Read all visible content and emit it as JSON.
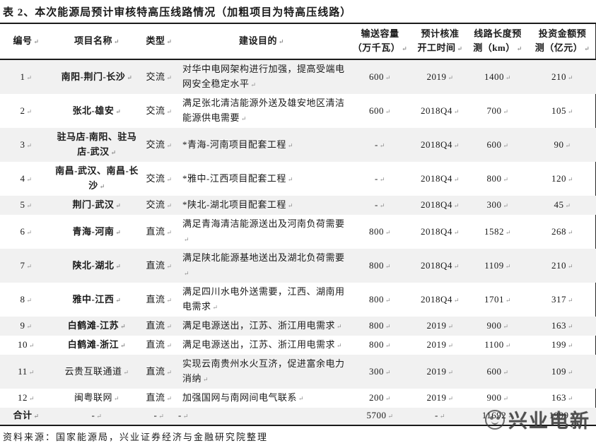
{
  "page": {
    "title": "表 2、本次能源局预计审核特高压线路情况（加粗项目为特高压线路）",
    "source": "资料来源：国家能源局，兴业证券经济与金融研究院整理",
    "watermark": "兴业电新"
  },
  "colors": {
    "stripe": "#f1f1f1",
    "border": "#1a1a1a",
    "watermark_grey": "#3c3c3c"
  },
  "table": {
    "columns": [
      {
        "key": "id",
        "label": "编号"
      },
      {
        "key": "name",
        "label": "项目名称"
      },
      {
        "key": "type",
        "label": "类型"
      },
      {
        "key": "purpose",
        "label": "建设目的"
      },
      {
        "key": "capacity",
        "label": "输送容量\n（万千瓦）"
      },
      {
        "key": "start",
        "label": "预计核准\n开工时间"
      },
      {
        "key": "length",
        "label": "线路长度预\n测（km）"
      },
      {
        "key": "investment",
        "label": "投资金额预\n测（亿元）"
      }
    ],
    "rows": [
      {
        "id": "1",
        "name": "南阳-荆门-长沙",
        "bold": true,
        "type": "交流",
        "purpose": "对华中电网架构进行加强，提高受端电网安全稳定水平",
        "capacity": "600",
        "start": "2019",
        "length": "1400",
        "investment": "210"
      },
      {
        "id": "2",
        "name": "张北-雄安",
        "bold": true,
        "type": "交流",
        "purpose": "满足张北清洁能源外送及雄安地区清洁能源供电需要",
        "capacity": "600",
        "start": "2018Q4",
        "length": "700",
        "investment": "105"
      },
      {
        "id": "3",
        "name": "驻马店-南阳、驻马店-武汉",
        "bold": true,
        "type": "交流",
        "purpose": "*青海-河南项目配套工程",
        "capacity": "-",
        "start": "2018Q4",
        "length": "600",
        "investment": "90"
      },
      {
        "id": "4",
        "name": "南昌-武汉、南昌-长沙",
        "bold": true,
        "type": "交流",
        "purpose": "*雅中-江西项目配套工程",
        "capacity": "-",
        "start": "2018Q4",
        "length": "800",
        "investment": "120"
      },
      {
        "id": "5",
        "name": "荆门-武汉",
        "bold": true,
        "type": "交流",
        "purpose": "*陕北-湖北项目配套工程",
        "capacity": "-",
        "start": "2018Q4",
        "length": "300",
        "investment": "45"
      },
      {
        "id": "6",
        "name": "青海-河南",
        "bold": true,
        "type": "直流",
        "purpose": "满足青海清洁能源送出及河南负荷需要",
        "capacity": "800",
        "start": "2018Q4",
        "length": "1582",
        "investment": "268"
      },
      {
        "id": "7",
        "name": "陕北-湖北",
        "bold": true,
        "type": "直流",
        "purpose": "满足陕北能源基地送出及湖北负荷需要",
        "capacity": "800",
        "start": "2018Q4",
        "length": "1109",
        "investment": "210"
      },
      {
        "id": "8",
        "name": "雅中-江西",
        "bold": true,
        "type": "直流",
        "purpose": "满足四川水电外送需要，江西、湖南用电需求",
        "capacity": "800",
        "start": "2018Q4",
        "length": "1701",
        "investment": "317"
      },
      {
        "id": "9",
        "name": "白鹤滩-江苏",
        "bold": true,
        "type": "直流",
        "purpose": "满足电源送出，江苏、浙江用电需求",
        "capacity": "800",
        "start": "2019",
        "length": "900",
        "investment": "163"
      },
      {
        "id": "10",
        "name": "白鹤滩-浙江",
        "bold": true,
        "type": "直流",
        "purpose": "满足电源送出，江苏、浙江用电需求",
        "capacity": "800",
        "start": "2019",
        "length": "1100",
        "investment": "199"
      },
      {
        "id": "11",
        "name": "云贵互联通道",
        "bold": false,
        "type": "直流",
        "purpose": "实现云南贵州水火互济，促进富余电力消纳",
        "capacity": "300",
        "start": "2019",
        "length": "600",
        "investment": "109"
      },
      {
        "id": "12",
        "name": "闽粤联网",
        "bold": false,
        "type": "直流",
        "purpose": "加强国网与南网间电气联系",
        "capacity": "200",
        "start": "2019",
        "length": "900",
        "investment": "163"
      }
    ],
    "total": {
      "id": "合计",
      "name": "-",
      "type": "-",
      "purpose": "-",
      "capacity": "5700",
      "start": "-",
      "length": "11692",
      "investment": "1999"
    }
  }
}
